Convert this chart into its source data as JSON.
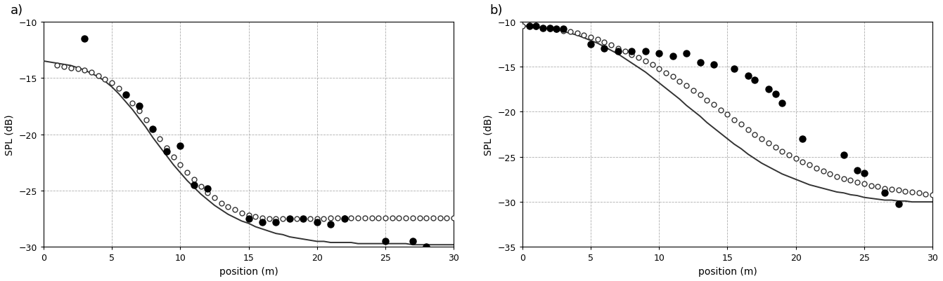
{
  "panel_a": {
    "label": "a)",
    "xlim": [
      0,
      30
    ],
    "ylim": [
      -30,
      -10
    ],
    "yticks": [
      -30,
      -25,
      -20,
      -15,
      -10
    ],
    "xticks": [
      0,
      5,
      10,
      15,
      20,
      25,
      30
    ],
    "xlabel": "position (m)",
    "ylabel": "SPL (dB)",
    "meas_x": [
      3,
      6,
      7,
      8,
      9,
      10,
      11,
      12,
      15,
      16,
      17,
      18,
      19,
      20,
      21,
      22,
      25,
      27,
      28
    ],
    "meas_y": [
      -11.5,
      -16.5,
      -17.5,
      -19.5,
      -21.5,
      -21.0,
      -24.5,
      -24.8,
      -27.5,
      -27.8,
      -27.8,
      -27.5,
      -27.5,
      -27.8,
      -28.0,
      -27.5,
      -29.5,
      -29.5,
      -30.0
    ],
    "ray_x": [
      1.0,
      1.5,
      2.0,
      2.5,
      3.0,
      3.5,
      4.0,
      4.5,
      5.0,
      5.5,
      6.0,
      6.5,
      7.0,
      7.5,
      8.0,
      8.5,
      9.0,
      9.5,
      10.0,
      10.5,
      11.0,
      11.5,
      12.0,
      12.5,
      13.0,
      13.5,
      14.0,
      14.5,
      15.0,
      15.5,
      16.0,
      16.5,
      17.0,
      17.5,
      18.0,
      18.5,
      19.0,
      19.5,
      20.0,
      20.5,
      21.0,
      21.5,
      22.0,
      22.5,
      23.0,
      23.5,
      24.0,
      24.5,
      25.0,
      25.5,
      26.0,
      26.5,
      27.0,
      27.5,
      28.0,
      28.5,
      29.0,
      29.5,
      30.0
    ],
    "ray_y": [
      -13.9,
      -14.0,
      -14.1,
      -14.2,
      -14.3,
      -14.5,
      -14.8,
      -15.1,
      -15.4,
      -15.9,
      -16.5,
      -17.2,
      -17.9,
      -18.7,
      -19.5,
      -20.4,
      -21.2,
      -22.0,
      -22.7,
      -23.4,
      -24.0,
      -24.6,
      -25.2,
      -25.6,
      -26.1,
      -26.4,
      -26.7,
      -27.0,
      -27.2,
      -27.3,
      -27.4,
      -27.5,
      -27.5,
      -27.5,
      -27.5,
      -27.5,
      -27.5,
      -27.5,
      -27.5,
      -27.5,
      -27.4,
      -27.4,
      -27.4,
      -27.4,
      -27.4,
      -27.4,
      -27.4,
      -27.4,
      -27.4,
      -27.4,
      -27.4,
      -27.4,
      -27.4,
      -27.4,
      -27.4,
      -27.4,
      -27.4,
      -27.4,
      -27.4
    ],
    "diffusion_x": [
      0.0,
      0.5,
      1.0,
      1.5,
      2.0,
      2.5,
      3.0,
      3.5,
      4.0,
      4.5,
      5.0,
      5.5,
      6.0,
      6.5,
      7.0,
      7.5,
      8.0,
      8.5,
      9.0,
      9.5,
      10.0,
      10.5,
      11.0,
      11.5,
      12.0,
      12.5,
      13.0,
      13.5,
      14.0,
      14.5,
      15.0,
      15.5,
      16.0,
      16.5,
      17.0,
      17.5,
      18.0,
      18.5,
      19.0,
      19.5,
      20.0,
      20.5,
      21.0,
      21.5,
      22.0,
      22.5,
      23.0,
      23.5,
      24.0,
      24.5,
      25.0,
      25.5,
      26.0,
      26.5,
      27.0,
      27.5,
      28.0,
      28.5,
      29.0,
      29.5,
      30.0
    ],
    "diffusion_y": [
      -13.5,
      -13.6,
      -13.7,
      -13.8,
      -13.9,
      -14.1,
      -14.3,
      -14.6,
      -14.9,
      -15.3,
      -15.8,
      -16.4,
      -17.1,
      -17.8,
      -18.6,
      -19.4,
      -20.3,
      -21.1,
      -21.9,
      -22.7,
      -23.4,
      -24.1,
      -24.7,
      -25.3,
      -25.8,
      -26.3,
      -26.7,
      -27.1,
      -27.4,
      -27.7,
      -27.9,
      -28.2,
      -28.4,
      -28.6,
      -28.8,
      -28.9,
      -29.1,
      -29.2,
      -29.3,
      -29.4,
      -29.5,
      -29.5,
      -29.6,
      -29.6,
      -29.6,
      -29.6,
      -29.7,
      -29.7,
      -29.7,
      -29.7,
      -29.7,
      -29.7,
      -29.7,
      -29.7,
      -29.8,
      -29.8,
      -29.8,
      -29.8,
      -29.8,
      -29.8,
      -29.8
    ]
  },
  "panel_b": {
    "label": "b)",
    "xlim": [
      0,
      30
    ],
    "ylim": [
      -35,
      -10
    ],
    "yticks": [
      -35,
      -30,
      -25,
      -20,
      -15,
      -10
    ],
    "xticks": [
      0,
      5,
      10,
      15,
      20,
      25,
      30
    ],
    "xlabel": "position (m)",
    "ylabel": "SPL (dB)",
    "meas_x": [
      0.5,
      1.0,
      1.5,
      2.0,
      2.5,
      3.0,
      5.0,
      6.0,
      7.0,
      8.0,
      9.0,
      10.0,
      11.0,
      12.0,
      13.0,
      14.0,
      15.5,
      16.5,
      17.0,
      18.0,
      18.5,
      19.0,
      20.5,
      23.5,
      24.5,
      25.0,
      26.5,
      27.5
    ],
    "meas_y": [
      -10.5,
      -10.5,
      -10.7,
      -10.7,
      -10.8,
      -10.8,
      -12.5,
      -13.0,
      -13.3,
      -13.3,
      -13.3,
      -13.5,
      -13.8,
      -13.5,
      -14.5,
      -14.8,
      -15.2,
      -16.0,
      -16.5,
      -17.5,
      -18.0,
      -19.0,
      -23.0,
      -24.8,
      -26.5,
      -26.8,
      -29.0,
      -30.2
    ],
    "ray_x": [
      0.0,
      0.5,
      1.0,
      1.5,
      2.0,
      2.5,
      3.0,
      3.5,
      4.0,
      4.5,
      5.0,
      5.5,
      6.0,
      6.5,
      7.0,
      7.5,
      8.0,
      8.5,
      9.0,
      9.5,
      10.0,
      10.5,
      11.0,
      11.5,
      12.0,
      12.5,
      13.0,
      13.5,
      14.0,
      14.5,
      15.0,
      15.5,
      16.0,
      16.5,
      17.0,
      17.5,
      18.0,
      18.5,
      19.0,
      19.5,
      20.0,
      20.5,
      21.0,
      21.5,
      22.0,
      22.5,
      23.0,
      23.5,
      24.0,
      24.5,
      25.0,
      25.5,
      26.0,
      26.5,
      27.0,
      27.5,
      28.0,
      28.5,
      29.0,
      29.5,
      30.0
    ],
    "ray_y": [
      -10.5,
      -10.5,
      -10.6,
      -10.7,
      -10.8,
      -10.9,
      -11.0,
      -11.1,
      -11.3,
      -11.5,
      -11.7,
      -12.0,
      -12.3,
      -12.6,
      -13.0,
      -13.3,
      -13.7,
      -14.0,
      -14.4,
      -14.8,
      -15.2,
      -15.7,
      -16.1,
      -16.6,
      -17.1,
      -17.6,
      -18.1,
      -18.7,
      -19.2,
      -19.8,
      -20.3,
      -20.9,
      -21.4,
      -22.0,
      -22.5,
      -23.0,
      -23.5,
      -23.9,
      -24.4,
      -24.8,
      -25.2,
      -25.6,
      -25.9,
      -26.3,
      -26.6,
      -26.9,
      -27.2,
      -27.4,
      -27.6,
      -27.8,
      -28.0,
      -28.2,
      -28.3,
      -28.5,
      -28.6,
      -28.7,
      -28.8,
      -28.9,
      -29.0,
      -29.1,
      -29.2
    ],
    "diffusion_x": [
      0.0,
      0.5,
      1.0,
      1.5,
      2.0,
      2.5,
      3.0,
      3.5,
      4.0,
      4.5,
      5.0,
      5.5,
      6.0,
      6.5,
      7.0,
      7.5,
      8.0,
      8.5,
      9.0,
      9.5,
      10.0,
      10.5,
      11.0,
      11.5,
      12.0,
      12.5,
      13.0,
      13.5,
      14.0,
      14.5,
      15.0,
      15.5,
      16.0,
      16.5,
      17.0,
      17.5,
      18.0,
      18.5,
      19.0,
      19.5,
      20.0,
      20.5,
      21.0,
      21.5,
      22.0,
      22.5,
      23.0,
      23.5,
      24.0,
      24.5,
      25.0,
      25.5,
      26.0,
      26.5,
      27.0,
      27.5,
      28.0,
      28.5,
      29.0,
      29.5,
      30.0
    ],
    "diffusion_y": [
      -10.5,
      -10.5,
      -10.6,
      -10.7,
      -10.8,
      -10.9,
      -11.1,
      -11.3,
      -11.5,
      -11.8,
      -12.1,
      -12.4,
      -12.8,
      -13.2,
      -13.6,
      -14.1,
      -14.6,
      -15.1,
      -15.6,
      -16.2,
      -16.8,
      -17.4,
      -18.0,
      -18.6,
      -19.3,
      -19.9,
      -20.5,
      -21.2,
      -21.8,
      -22.4,
      -23.0,
      -23.6,
      -24.1,
      -24.7,
      -25.2,
      -25.7,
      -26.1,
      -26.5,
      -26.9,
      -27.2,
      -27.5,
      -27.8,
      -28.1,
      -28.3,
      -28.5,
      -28.7,
      -28.9,
      -29.0,
      -29.2,
      -29.3,
      -29.5,
      -29.6,
      -29.7,
      -29.8,
      -29.8,
      -29.9,
      -29.9,
      -30.0,
      -30.0,
      -30.0,
      -30.0
    ]
  },
  "line_color": "#333333",
  "bg_color": "#ffffff",
  "grid_color": "#999999"
}
